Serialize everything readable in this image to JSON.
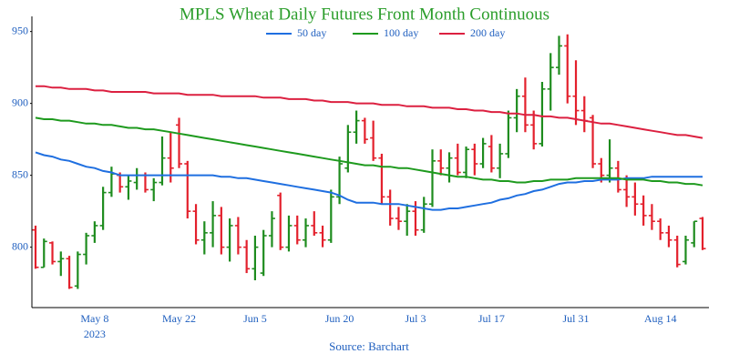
{
  "chart_data": {
    "type": "ohlc",
    "title": "MPLS Wheat Daily Futures Front Month Continuous",
    "title_color": "#2a9d2a",
    "source": "Source: Barchart",
    "up_color": "#1e8c1e",
    "down_color": "#e3202c",
    "categories": [
      "2023-04-27",
      "2023-04-28",
      "2023-05-01",
      "2023-05-02",
      "2023-05-03",
      "2023-05-04",
      "2023-05-05",
      "2023-05-08",
      "2023-05-09",
      "2023-05-10",
      "2023-05-11",
      "2023-05-12",
      "2023-05-15",
      "2023-05-16",
      "2023-05-17",
      "2023-05-18",
      "2023-05-19",
      "2023-05-22",
      "2023-05-23",
      "2023-05-24",
      "2023-05-25",
      "2023-05-26",
      "2023-05-30",
      "2023-05-31",
      "2023-06-01",
      "2023-06-02",
      "2023-06-05",
      "2023-06-06",
      "2023-06-07",
      "2023-06-08",
      "2023-06-09",
      "2023-06-12",
      "2023-06-13",
      "2023-06-14",
      "2023-06-15",
      "2023-06-16",
      "2023-06-20",
      "2023-06-21",
      "2023-06-22",
      "2023-06-23",
      "2023-06-26",
      "2023-06-27",
      "2023-06-28",
      "2023-06-29",
      "2023-06-30",
      "2023-07-03",
      "2023-07-05",
      "2023-07-06",
      "2023-07-07",
      "2023-07-10",
      "2023-07-11",
      "2023-07-12",
      "2023-07-13",
      "2023-07-14",
      "2023-07-17",
      "2023-07-18",
      "2023-07-19",
      "2023-07-20",
      "2023-07-21",
      "2023-07-24",
      "2023-07-25",
      "2023-07-26",
      "2023-07-27",
      "2023-07-28",
      "2023-07-31",
      "2023-08-01",
      "2023-08-02",
      "2023-08-03",
      "2023-08-04",
      "2023-08-07",
      "2023-08-08",
      "2023-08-09",
      "2023-08-10",
      "2023-08-11",
      "2023-08-14",
      "2023-08-15",
      "2023-08-16",
      "2023-08-17",
      "2023-08-18",
      "2023-08-21"
    ],
    "open": [
      812,
      786,
      803,
      790,
      792,
      773,
      795,
      808,
      815,
      838,
      850,
      842,
      845,
      850,
      840,
      845,
      862,
      885,
      858,
      825,
      805,
      810,
      822,
      800,
      815,
      800,
      785,
      782,
      808,
      836,
      800,
      815,
      805,
      815,
      810,
      805,
      835,
      855,
      880,
      888,
      876,
      862,
      835,
      820,
      818,
      825,
      812,
      830,
      860,
      855,
      862,
      852,
      868,
      858,
      870,
      855,
      865,
      890,
      905,
      885,
      872,
      910,
      925,
      940,
      905,
      895,
      890,
      858,
      850,
      855,
      840,
      835,
      830,
      822,
      818,
      810,
      805,
      790,
      803,
      820
    ],
    "high": [
      815,
      806,
      804,
      797,
      794,
      797,
      810,
      818,
      842,
      856,
      852,
      850,
      855,
      852,
      848,
      877,
      880,
      890,
      860,
      830,
      818,
      832,
      828,
      820,
      821,
      805,
      808,
      812,
      825,
      838,
      822,
      822,
      820,
      825,
      815,
      840,
      863,
      885,
      895,
      890,
      888,
      865,
      840,
      828,
      830,
      832,
      835,
      868,
      868,
      866,
      872,
      870,
      872,
      876,
      878,
      872,
      895,
      910,
      918,
      895,
      915,
      935,
      947,
      948,
      930,
      905,
      892,
      862,
      875,
      860,
      850,
      845,
      836,
      830,
      820,
      815,
      808,
      808,
      818,
      821
    ],
    "low": [
      785,
      786,
      788,
      780,
      771,
      771,
      788,
      803,
      812,
      835,
      838,
      833,
      840,
      838,
      832,
      843,
      845,
      855,
      820,
      802,
      795,
      800,
      795,
      790,
      795,
      782,
      777,
      780,
      800,
      798,
      797,
      802,
      800,
      808,
      800,
      803,
      830,
      852,
      872,
      872,
      860,
      830,
      815,
      812,
      808,
      808,
      810,
      828,
      850,
      845,
      850,
      848,
      850,
      855,
      852,
      848,
      862,
      880,
      880,
      868,
      870,
      895,
      920,
      900,
      885,
      880,
      855,
      845,
      845,
      838,
      828,
      822,
      815,
      812,
      805,
      800,
      786,
      788,
      800,
      798
    ],
    "close": [
      786,
      804,
      790,
      792,
      772,
      795,
      808,
      815,
      838,
      851,
      842,
      846,
      850,
      840,
      845,
      862,
      855,
      858,
      825,
      805,
      810,
      822,
      800,
      815,
      800,
      785,
      800,
      808,
      820,
      800,
      815,
      805,
      815,
      810,
      805,
      835,
      858,
      880,
      888,
      875,
      862,
      835,
      820,
      818,
      825,
      812,
      830,
      860,
      855,
      862,
      852,
      868,
      858,
      872,
      855,
      865,
      890,
      905,
      885,
      872,
      910,
      925,
      940,
      905,
      895,
      888,
      858,
      850,
      855,
      840,
      835,
      830,
      822,
      818,
      810,
      805,
      788,
      805,
      818,
      799
    ],
    "lines": [
      {
        "name": "50 day",
        "color": "#1f6fe0",
        "values": [
          866,
          864,
          863,
          861,
          860,
          858,
          856,
          855,
          853,
          852,
          850,
          850,
          850,
          850,
          850,
          850,
          850,
          850,
          850,
          850,
          850,
          850,
          849,
          849,
          848,
          848,
          847,
          846,
          845,
          844,
          843,
          842,
          841,
          840,
          839,
          838,
          836,
          833,
          831,
          831,
          831,
          830,
          830,
          830,
          829,
          828,
          827,
          826,
          826,
          827,
          827,
          828,
          829,
          830,
          831,
          833,
          834,
          836,
          837,
          839,
          840,
          842,
          844,
          845,
          845,
          846,
          846,
          847,
          847,
          847,
          848,
          848,
          848,
          849,
          849,
          849,
          849,
          849,
          849,
          849
        ]
      },
      {
        "name": "100 day",
        "color": "#1e9a1e",
        "values": [
          890,
          889,
          889,
          888,
          888,
          887,
          886,
          886,
          885,
          885,
          884,
          883,
          883,
          882,
          882,
          881,
          880,
          879,
          878,
          877,
          876,
          875,
          874,
          873,
          872,
          871,
          870,
          869,
          868,
          867,
          866,
          865,
          864,
          863,
          862,
          861,
          860,
          859,
          858,
          857,
          857,
          856,
          856,
          855,
          855,
          854,
          853,
          852,
          851,
          850,
          849,
          849,
          848,
          847,
          847,
          846,
          846,
          845,
          845,
          846,
          846,
          847,
          847,
          847,
          848,
          848,
          848,
          848,
          848,
          848,
          847,
          847,
          847,
          846,
          846,
          845,
          845,
          844,
          844,
          843
        ]
      },
      {
        "name": "200 day",
        "color": "#dc2040",
        "values": [
          912,
          912,
          911,
          911,
          910,
          910,
          910,
          909,
          909,
          908,
          908,
          908,
          908,
          908,
          907,
          907,
          907,
          907,
          906,
          906,
          906,
          906,
          905,
          905,
          905,
          905,
          905,
          904,
          904,
          904,
          903,
          903,
          903,
          902,
          902,
          901,
          901,
          901,
          900,
          900,
          900,
          899,
          899,
          899,
          898,
          898,
          898,
          897,
          897,
          897,
          896,
          896,
          895,
          895,
          894,
          894,
          893,
          893,
          892,
          892,
          891,
          891,
          890,
          890,
          889,
          888,
          887,
          886,
          886,
          885,
          884,
          883,
          882,
          881,
          880,
          879,
          878,
          878,
          877,
          876
        ]
      }
    ],
    "ylim": [
      758,
      958
    ],
    "yticks": [
      800,
      850,
      900,
      950
    ],
    "xticks": [
      {
        "value": "2023-05-08",
        "label": "May 8"
      },
      {
        "value": "2023-05-22",
        "label": "May 22"
      },
      {
        "value": "2023-06-05",
        "label": "Jun 5"
      },
      {
        "value": "2023-06-20",
        "label": "Jun 20"
      },
      {
        "value": "2023-07-03",
        "label": "Jul 3"
      },
      {
        "value": "2023-07-17",
        "label": "Jul 17"
      },
      {
        "value": "2023-07-31",
        "label": "Jul 31"
      },
      {
        "value": "2023-08-14",
        "label": "Aug 14"
      }
    ],
    "x_year_label": "2023"
  }
}
